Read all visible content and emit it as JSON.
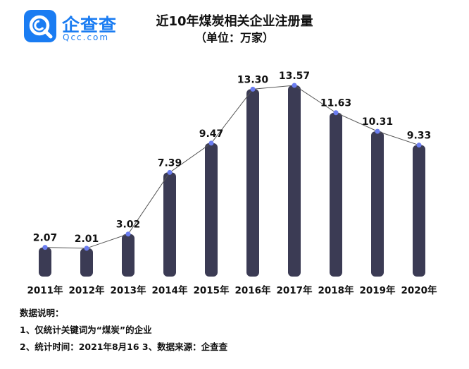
{
  "logo": {
    "name": "企查查",
    "sub": "Qcc.com"
  },
  "title": "近10年煤炭相关企业注册量",
  "subtitle": "（单位：万家）",
  "notes": {
    "heading": "数据说明：",
    "line1": "1、仅统计关键词为“煤炭”的企业",
    "line2": "2、统计时间：2021年8月16  3、数据来源：企查查"
  },
  "colors": {
    "bar": "#3b3b54",
    "point": "#6b7df0",
    "line": "#555555",
    "brand": "#1a7cf2"
  },
  "chart_data": {
    "type": "bar",
    "title": "近10年煤炭相关企业注册量",
    "subtitle": "（单位：万家）",
    "categories": [
      "2011年",
      "2012年",
      "2013年",
      "2014年",
      "2015年",
      "2016年",
      "2017年",
      "2018年",
      "2019年",
      "2020年"
    ],
    "values": [
      2.07,
      2.01,
      3.02,
      7.39,
      9.47,
      13.3,
      13.57,
      11.63,
      10.31,
      9.33
    ],
    "value_labels": [
      "2.07",
      "2.01",
      "3.02",
      "7.39",
      "9.47",
      "13.30",
      "13.57",
      "11.63",
      "10.31",
      "9.33"
    ],
    "overlay": "line",
    "ylim": [
      0,
      13.57
    ],
    "grid": false,
    "legend": "none"
  }
}
